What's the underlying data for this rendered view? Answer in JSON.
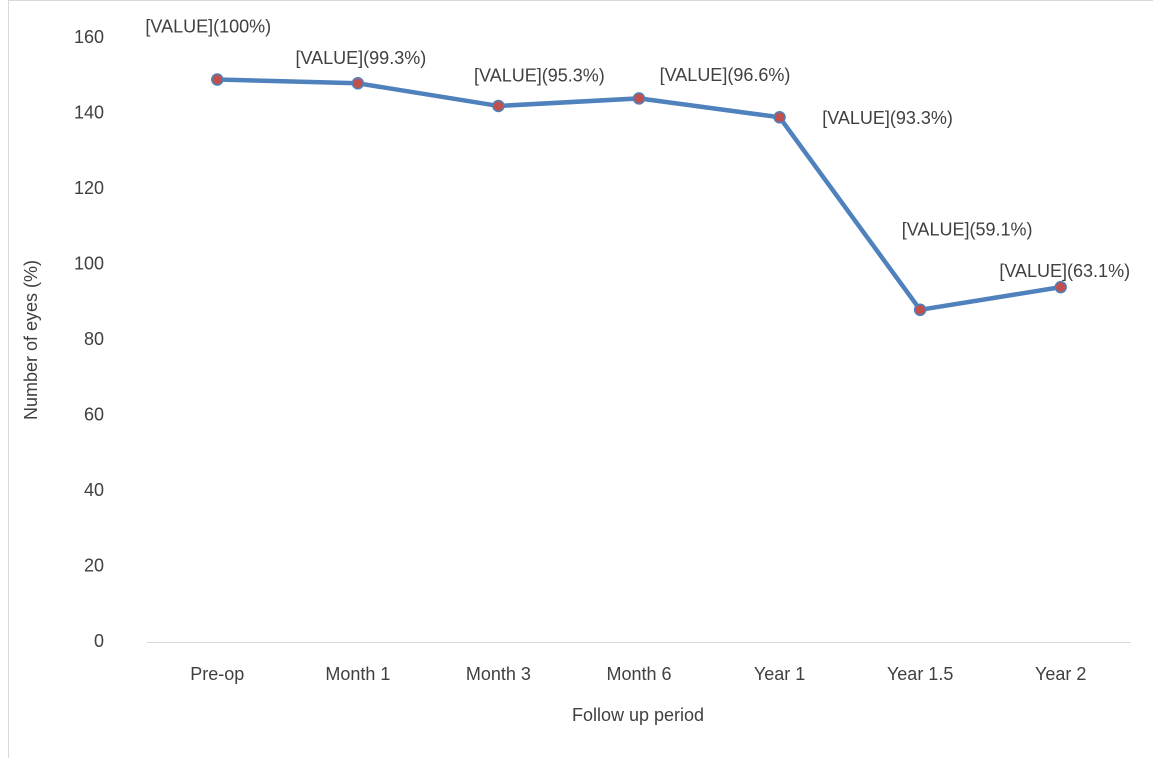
{
  "chart_data": {
    "type": "line",
    "x_label": "Follow up period",
    "y_label": "Number of eyes (%)",
    "categories": [
      "Pre-op",
      "Month 1",
      "Month 3",
      "Month 6",
      "Year 1",
      "Year 1.5",
      "Year 2"
    ],
    "values": [
      149,
      148,
      142,
      144,
      139,
      88,
      94
    ],
    "value_labels": [
      "[VALUE](100%)",
      "[VALUE](99.3%)",
      "[VALUE](95.3%)",
      "[VALUE](96.6%)",
      "[VALUE](93.3%)",
      "[VALUE](59.1%)",
      "[VALUE](63.1%)"
    ],
    "color": "#4f81bd",
    "marker_color": "#c0504d",
    "ylim": [
      0,
      160
    ],
    "yticks": [
      0,
      20,
      40,
      60,
      80,
      100,
      120,
      140,
      160
    ],
    "grid": false
  }
}
